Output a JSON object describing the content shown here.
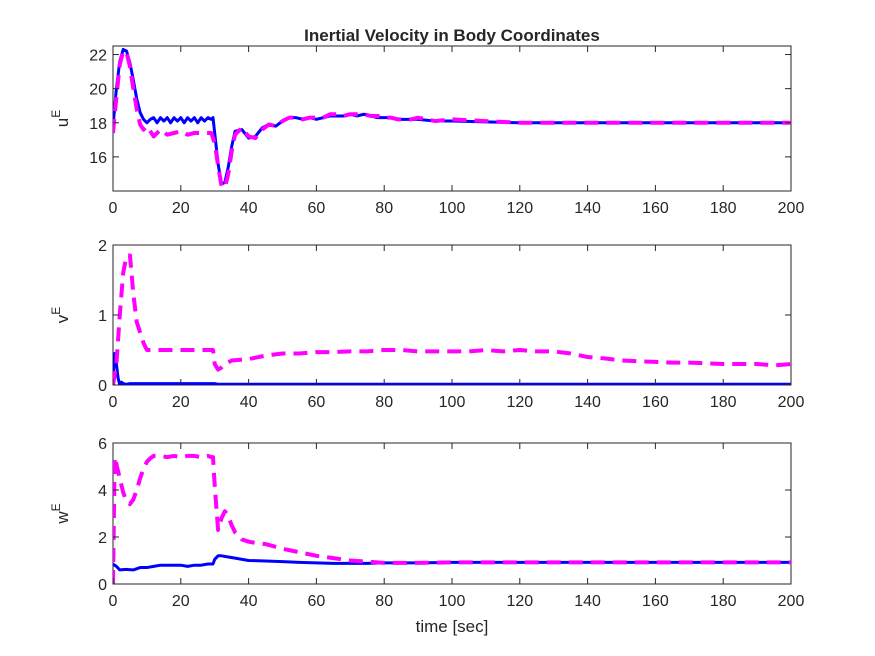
{
  "chart_data": [
    {
      "type": "line",
      "title": "Inertial Velocity in Body Coordinates",
      "ylabel": {
        "main": "u",
        "sup": "E"
      },
      "xlabel": "",
      "xlim": [
        0,
        200
      ],
      "ylim": [
        14,
        22.5
      ],
      "xticks": [
        0,
        20,
        40,
        60,
        80,
        100,
        120,
        140,
        160,
        180,
        200
      ],
      "yticks": [
        16,
        18,
        20,
        22
      ],
      "grid": false,
      "series": [
        {
          "color": "#0000ff",
          "style": "solid",
          "x": [
            0,
            1,
            2,
            3,
            4,
            5,
            6,
            7,
            8,
            9,
            10,
            11,
            12,
            13,
            14,
            15,
            16,
            17,
            18,
            19,
            20,
            21,
            22,
            23,
            24,
            25,
            26,
            27,
            28,
            29,
            29.5,
            30,
            31,
            32,
            33,
            34,
            35,
            36,
            38,
            40,
            42,
            44,
            46,
            48,
            50,
            52,
            54,
            56,
            58,
            60,
            62,
            64,
            66,
            68,
            70,
            72,
            74,
            76,
            78,
            80,
            82,
            84,
            86,
            88,
            90,
            95,
            100,
            110,
            120,
            130,
            140,
            150,
            160,
            170,
            180,
            190,
            200
          ],
          "y": [
            17.8,
            20.0,
            21.6,
            22.3,
            22.2,
            21.5,
            20.5,
            19.4,
            18.6,
            18.2,
            18.0,
            18.2,
            18.3,
            18.0,
            18.3,
            18.1,
            18.3,
            18.0,
            18.3,
            18.1,
            18.3,
            18.0,
            18.3,
            18.1,
            18.3,
            18.0,
            18.3,
            18.1,
            18.3,
            18.2,
            18.3,
            17.4,
            15.6,
            14.4,
            14.5,
            15.4,
            16.6,
            17.5,
            17.6,
            17.1,
            17.2,
            17.7,
            17.9,
            17.8,
            18.1,
            18.3,
            18.3,
            18.2,
            18.3,
            18.2,
            18.3,
            18.4,
            18.4,
            18.4,
            18.5,
            18.4,
            18.5,
            18.4,
            18.3,
            18.3,
            18.3,
            18.2,
            18.2,
            18.2,
            18.2,
            18.1,
            18.1,
            18.05,
            18.0,
            18.0,
            18.0,
            18.0,
            18.0,
            18.0,
            18.0,
            18.0,
            18.0
          ]
        },
        {
          "color": "#ff00ff",
          "style": "dashed",
          "x": [
            0,
            1,
            2,
            3,
            4,
            5,
            6,
            7,
            8,
            9,
            10,
            11,
            12,
            13,
            14,
            16,
            18,
            20,
            22,
            24,
            26,
            28,
            29,
            30,
            31,
            32,
            33,
            34,
            35,
            36,
            38,
            40,
            42,
            44,
            46,
            48,
            50,
            52,
            54,
            56,
            58,
            60,
            62,
            64,
            66,
            68,
            70,
            72,
            74,
            76,
            78,
            80,
            82,
            84,
            86,
            88,
            90,
            95,
            100,
            110,
            120,
            130,
            140,
            150,
            160,
            170,
            180,
            190,
            200
          ],
          "y": [
            17.4,
            19.5,
            21.4,
            22.2,
            22.1,
            21.3,
            20.0,
            18.8,
            17.9,
            17.6,
            17.8,
            17.5,
            17.2,
            17.4,
            17.6,
            17.3,
            17.4,
            17.5,
            17.3,
            17.4,
            17.4,
            17.4,
            17.4,
            16.8,
            15.5,
            14.3,
            14.2,
            15.0,
            16.3,
            17.3,
            17.7,
            17.2,
            17.1,
            17.6,
            17.9,
            17.8,
            18.1,
            18.3,
            18.3,
            18.2,
            18.3,
            18.3,
            18.3,
            18.5,
            18.5,
            18.4,
            18.5,
            18.5,
            18.5,
            18.4,
            18.4,
            18.3,
            18.3,
            18.2,
            18.2,
            18.2,
            18.3,
            18.1,
            18.2,
            18.1,
            18.0,
            18.0,
            18.0,
            18.0,
            18.0,
            18.0,
            18.0,
            18.0,
            18.0
          ]
        }
      ]
    },
    {
      "type": "line",
      "title": "",
      "ylabel": {
        "main": "v",
        "sup": "E"
      },
      "xlabel": "",
      "xlim": [
        0,
        200
      ],
      "ylim": [
        0,
        2
      ],
      "xticks": [
        0,
        20,
        40,
        60,
        80,
        100,
        120,
        140,
        160,
        180,
        200
      ],
      "yticks": [
        0,
        1,
        2
      ],
      "grid": false,
      "series": [
        {
          "color": "#0000ff",
          "style": "solid",
          "x": [
            0,
            0.5,
            1,
            1.5,
            2,
            2.5,
            3,
            4,
            5,
            10,
            20,
            30,
            31,
            40,
            60,
            80,
            100,
            120,
            140,
            160,
            180,
            200
          ],
          "y": [
            0.1,
            0.45,
            0.3,
            0.1,
            0.0,
            0.04,
            0.02,
            0.01,
            0.02,
            0.02,
            0.02,
            0.02,
            0.01,
            0.01,
            0.01,
            0.01,
            0.01,
            0.01,
            0.01,
            0.01,
            0.01,
            0.01
          ]
        },
        {
          "color": "#ff00ff",
          "style": "dashed",
          "x": [
            0,
            1,
            2,
            3,
            4,
            5,
            6,
            7,
            8,
            9,
            10,
            12,
            14,
            16,
            18,
            20,
            22,
            24,
            26,
            28,
            29.5,
            30,
            31,
            32,
            33,
            35,
            40,
            45,
            50,
            55,
            60,
            65,
            70,
            75,
            80,
            85,
            90,
            95,
            100,
            105,
            110,
            115,
            120,
            125,
            130,
            135,
            140,
            145,
            150,
            155,
            160,
            165,
            170,
            175,
            180,
            185,
            190,
            195,
            200
          ],
          "y": [
            0.0,
            0.3,
            1.0,
            1.6,
            1.85,
            1.85,
            1.3,
            0.9,
            0.75,
            0.6,
            0.5,
            0.5,
            0.5,
            0.5,
            0.5,
            0.5,
            0.5,
            0.5,
            0.5,
            0.5,
            0.5,
            0.3,
            0.22,
            0.25,
            0.3,
            0.35,
            0.37,
            0.42,
            0.45,
            0.45,
            0.47,
            0.47,
            0.48,
            0.48,
            0.5,
            0.5,
            0.48,
            0.48,
            0.48,
            0.48,
            0.5,
            0.48,
            0.5,
            0.48,
            0.48,
            0.45,
            0.4,
            0.38,
            0.35,
            0.34,
            0.33,
            0.32,
            0.32,
            0.31,
            0.3,
            0.3,
            0.3,
            0.28,
            0.3
          ]
        }
      ]
    },
    {
      "type": "line",
      "title": "",
      "ylabel": {
        "main": "w",
        "sup": "E"
      },
      "xlabel": "time [sec]",
      "xlim": [
        0,
        200
      ],
      "ylim": [
        0,
        6
      ],
      "xticks": [
        0,
        20,
        40,
        60,
        80,
        100,
        120,
        140,
        160,
        180,
        200
      ],
      "yticks": [
        0,
        2,
        4,
        6
      ],
      "grid": false,
      "series": [
        {
          "color": "#0000ff",
          "style": "solid",
          "x": [
            0,
            1,
            2,
            4,
            6,
            8,
            10,
            12,
            14,
            16,
            18,
            20,
            22,
            24,
            26,
            28,
            29.5,
            30,
            31,
            32,
            34,
            36,
            40,
            45,
            50,
            55,
            60,
            65,
            70,
            75,
            80,
            90,
            100,
            110,
            120,
            140,
            160,
            180,
            200
          ],
          "y": [
            0.85,
            0.75,
            0.6,
            0.62,
            0.6,
            0.7,
            0.7,
            0.75,
            0.8,
            0.8,
            0.8,
            0.8,
            0.75,
            0.8,
            0.8,
            0.85,
            0.85,
            1.05,
            1.2,
            1.2,
            1.15,
            1.1,
            1.0,
            0.98,
            0.95,
            0.92,
            0.9,
            0.88,
            0.88,
            0.88,
            0.9,
            0.9,
            0.92,
            0.92,
            0.92,
            0.92,
            0.92,
            0.92,
            0.92
          ]
        },
        {
          "color": "#ff00ff",
          "style": "dashed",
          "x": [
            0,
            0.5,
            1,
            2,
            3,
            4,
            5,
            6,
            7,
            8,
            9,
            10,
            11,
            12,
            14,
            16,
            18,
            20,
            22,
            24,
            26,
            28,
            29,
            29.5,
            30,
            31,
            32,
            33,
            34,
            35,
            36,
            38,
            40,
            42,
            45,
            50,
            55,
            60,
            65,
            70,
            75,
            80,
            90,
            100,
            110,
            120,
            140,
            160,
            180,
            200
          ],
          "y": [
            0.0,
            5.4,
            5.1,
            4.5,
            3.9,
            3.5,
            3.4,
            3.6,
            4.0,
            4.5,
            4.9,
            5.2,
            5.35,
            5.45,
            5.45,
            5.4,
            5.45,
            5.4,
            5.45,
            5.45,
            5.4,
            5.45,
            5.4,
            5.4,
            4.2,
            2.3,
            2.8,
            3.1,
            2.9,
            2.5,
            2.2,
            1.9,
            1.8,
            1.75,
            1.7,
            1.5,
            1.35,
            1.2,
            1.1,
            1.0,
            0.95,
            0.9,
            0.9,
            0.92,
            0.92,
            0.92,
            0.92,
            0.92,
            0.92,
            0.92
          ]
        }
      ]
    }
  ]
}
